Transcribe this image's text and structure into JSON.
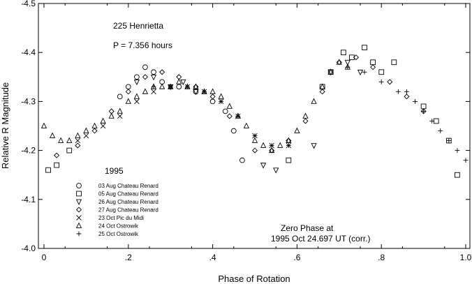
{
  "chart_data": {
    "type": "scatter",
    "xlabel": "Phase of Rotation",
    "ylabel": "Relative R Magnitude",
    "xlim": [
      0,
      1.0
    ],
    "ylim": [
      -4.0,
      -4.5
    ],
    "y_inverted": true,
    "grid": false,
    "x_ticks": [
      {
        "value": 0.0,
        "label": "0"
      },
      {
        "value": 0.2,
        "label": ".2"
      },
      {
        "value": 0.4,
        "label": ".4"
      },
      {
        "value": 0.6,
        "label": ".6"
      },
      {
        "value": 0.8,
        "label": ".8"
      },
      {
        "value": 1.0,
        "label": "1.0"
      }
    ],
    "y_ticks": [
      {
        "value": -4.5,
        "label": "-4.5"
      },
      {
        "value": -4.4,
        "label": "-4.4"
      },
      {
        "value": -4.3,
        "label": "-4.3"
      },
      {
        "value": -4.2,
        "label": "-4.2"
      },
      {
        "value": -4.1,
        "label": "-4.1"
      },
      {
        "value": -4.0,
        "label": "-4.0"
      }
    ],
    "annotations": {
      "object": "225 Henrietta",
      "period": "P = 7.356 hours",
      "year": "1995",
      "zero_phase_line1": "Zero Phase at",
      "zero_phase_line2": "1995 Oct 24.697 UT (corr.)"
    },
    "legend_placement": "lower-left",
    "series": [
      {
        "name": "03 Aug Chateau Renard",
        "marker": "circle",
        "x": [
          0.18,
          0.2,
          0.22,
          0.24,
          0.26,
          0.28,
          0.32,
          0.36,
          0.4,
          0.43,
          0.45,
          0.47
        ],
        "y": [
          -4.31,
          -4.33,
          -4.35,
          -4.37,
          -4.36,
          -4.34,
          -4.33,
          -4.32,
          -4.3,
          -4.28,
          -4.24,
          -4.18
        ]
      },
      {
        "name": "05 Aug Chateau Renard",
        "marker": "square",
        "x": [
          0.01,
          0.03,
          0.06,
          0.58,
          0.66,
          0.68,
          0.71,
          0.73,
          0.76,
          0.78,
          0.8,
          0.83,
          0.9,
          0.93,
          0.96,
          0.98
        ],
        "y": [
          -4.16,
          -4.17,
          -4.2,
          -4.18,
          -4.33,
          -4.36,
          -4.4,
          -4.39,
          -4.41,
          -4.38,
          -4.36,
          -4.38,
          -4.29,
          -4.26,
          -4.22,
          -4.15
        ]
      },
      {
        "name": "26 Aug Chateau Renard",
        "marker": "triangle-down",
        "x": [
          0.22,
          0.26,
          0.3,
          0.33,
          0.36,
          0.52,
          0.55,
          0.64,
          0.68,
          0.72,
          0.75
        ],
        "y": [
          -4.34,
          -4.35,
          -4.33,
          -4.34,
          -4.32,
          -4.17,
          -4.16,
          -4.21,
          -4.36,
          -4.38,
          -4.36
        ]
      },
      {
        "name": "27 Aug Chateau Renard",
        "marker": "diamond",
        "x": [
          0.03,
          0.08,
          0.12,
          0.16,
          0.2,
          0.24,
          0.28,
          0.32,
          0.36,
          0.4,
          0.44,
          0.5,
          0.54,
          0.58,
          0.62,
          0.66,
          0.7,
          0.74,
          0.78,
          0.82,
          0.86,
          0.9
        ],
        "y": [
          -4.19,
          -4.21,
          -4.24,
          -4.28,
          -4.32,
          -4.35,
          -4.36,
          -4.35,
          -4.33,
          -4.31,
          -4.27,
          -4.2,
          -4.2,
          -4.22,
          -4.26,
          -4.32,
          -4.38,
          -4.39,
          -4.37,
          -4.34,
          -4.31,
          -4.28
        ]
      },
      {
        "name": "23 Oct Pic du Midi",
        "marker": "x",
        "x": [
          0.08,
          0.1,
          0.14,
          0.18,
          0.22,
          0.26,
          0.3,
          0.34,
          0.38,
          0.42,
          0.46,
          0.5,
          0.54,
          0.58
        ],
        "y": [
          -4.22,
          -4.23,
          -4.25,
          -4.27,
          -4.3,
          -4.32,
          -4.33,
          -4.33,
          -4.32,
          -4.3,
          -4.27,
          -4.23,
          -4.21,
          -4.21
        ]
      },
      {
        "name": "24 Oct Ostrowik",
        "marker": "triangle",
        "x": [
          0.0,
          0.02,
          0.04,
          0.06,
          0.08,
          0.1,
          0.12,
          0.14,
          0.16,
          0.18,
          0.2,
          0.22,
          0.24,
          0.26,
          0.28,
          0.3,
          0.32,
          0.34,
          0.36,
          0.38,
          0.4,
          0.42,
          0.44,
          0.46,
          0.48,
          0.5,
          0.52,
          0.54,
          0.56,
          0.58,
          0.6,
          0.62,
          0.64,
          0.66,
          0.68,
          0.7,
          0.72
        ],
        "y": [
          -4.25,
          -4.23,
          -4.22,
          -4.22,
          -4.23,
          -4.24,
          -4.25,
          -4.26,
          -4.27,
          -4.28,
          -4.3,
          -4.31,
          -4.32,
          -4.33,
          -4.33,
          -4.33,
          -4.34,
          -4.33,
          -4.33,
          -4.32,
          -4.32,
          -4.31,
          -4.29,
          -4.27,
          -4.25,
          -4.22,
          -4.21,
          -4.2,
          -4.21,
          -4.22,
          -4.24,
          -4.27,
          -4.3,
          -4.33,
          -4.36,
          -4.38,
          -4.37
        ]
      },
      {
        "name": "25 Oct Ostrowik",
        "marker": "plus",
        "x": [
          0.26,
          0.3,
          0.34,
          0.38,
          0.42,
          0.46,
          0.5,
          0.54,
          0.58,
          0.72,
          0.76,
          0.8,
          0.84,
          0.86,
          0.88,
          0.9,
          0.92,
          0.94,
          0.96,
          0.98,
          1.0
        ],
        "y": [
          -4.33,
          -4.33,
          -4.33,
          -4.32,
          -4.3,
          -4.27,
          -4.23,
          -4.21,
          -4.21,
          -4.37,
          -4.36,
          -4.34,
          -4.32,
          -4.32,
          -4.3,
          -4.28,
          -4.26,
          -4.24,
          -4.22,
          -4.2,
          -4.18
        ]
      }
    ]
  }
}
